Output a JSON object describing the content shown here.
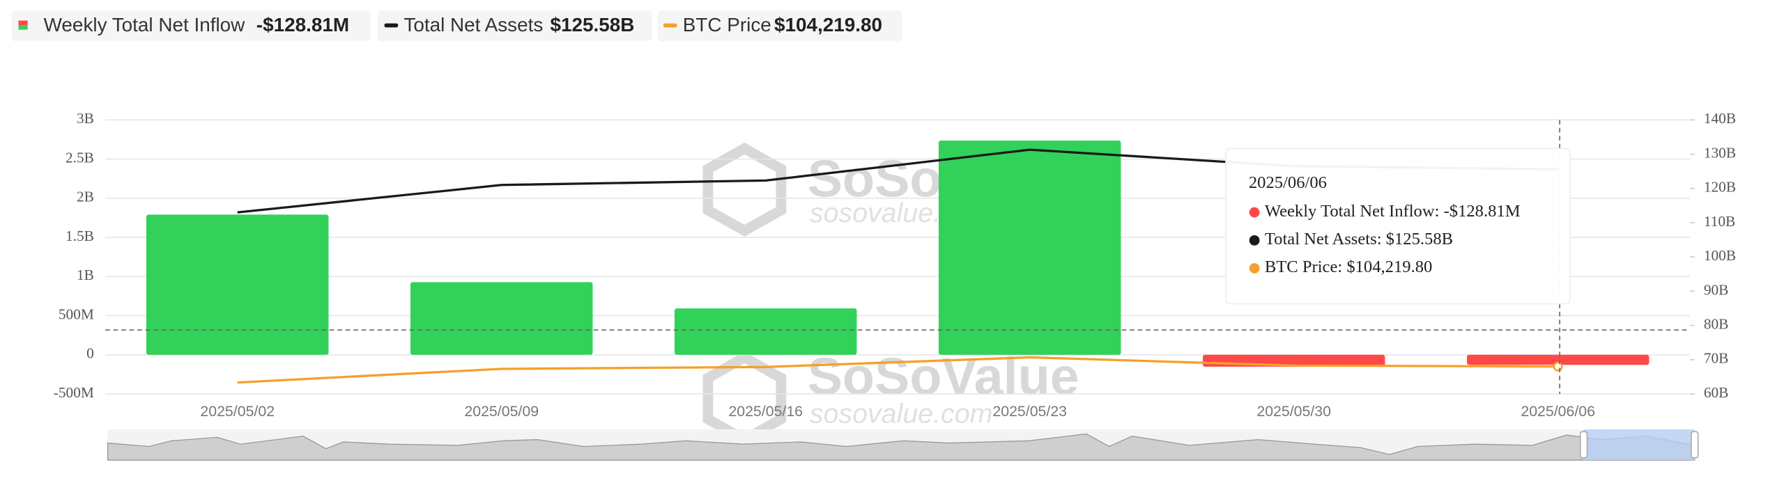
{
  "chart_data": {
    "type": "bar",
    "categories": [
      "2025/05/02",
      "2025/05/09",
      "2025/05/16",
      "2025/05/23",
      "2025/05/30",
      "2025/06/06"
    ],
    "series": [
      {
        "name": "Weekly Total Net Inflow",
        "type": "bar",
        "color": "#32d15a",
        "negative_color": "#ff4848",
        "values": [
          1790,
          928,
          593,
          2736,
          -152,
          -128.81
        ],
        "legend_value": "-$128.81M"
      },
      {
        "name": "Total Net Assets",
        "type": "line",
        "axis": "y2",
        "color": "#1a1a1a",
        "values": [
          113,
          121,
          122.3,
          131.3,
          126.5,
          125.58
        ],
        "legend_value": "$125.58B"
      },
      {
        "name": "BTC Price",
        "type": "line",
        "axis": "y3",
        "color": "#f5a02a",
        "values": [
          96500,
          103100,
          104000,
          108650,
          104700,
          104219.8
        ],
        "legend_value": "$104,219.80"
      }
    ],
    "ylim": [
      -500,
      3000
    ],
    "yticks": [
      {
        "value": -500,
        "label": "-500M"
      },
      0,
      {
        "value": 500,
        "label": "500M"
      },
      {
        "value": 1000,
        "label": "1B"
      },
      {
        "value": 1500,
        "label": "1.5B"
      },
      {
        "value": 2000,
        "label": "2B"
      },
      {
        "value": 2500,
        "label": "2.5B"
      },
      {
        "value": 3000,
        "label": "3B"
      }
    ],
    "y2lim": [
      60,
      140
    ],
    "y2ticks": [
      {
        "value": 60,
        "label": "60B"
      },
      {
        "value": 70,
        "label": "70B"
      },
      {
        "value": 80,
        "label": "80B"
      },
      {
        "value": 90,
        "label": "90B"
      },
      {
        "value": 100,
        "label": "100B"
      },
      {
        "value": 110,
        "label": "110B"
      },
      {
        "value": 120,
        "label": "120B"
      },
      {
        "value": 130,
        "label": "130B"
      },
      {
        "value": 140,
        "label": "140B"
      }
    ],
    "y3lim": [
      90982,
      223382
    ],
    "grid": true,
    "tooltip": {
      "title": "2025/06/06",
      "lines": [
        "Weekly Total Net Inflow: -$128.81M",
        "Total Net Assets: $125.58B",
        "BTC Price: $104,219.80"
      ]
    },
    "watermark": [
      "SoSoValue",
      "sosovalue.com"
    ]
  }
}
